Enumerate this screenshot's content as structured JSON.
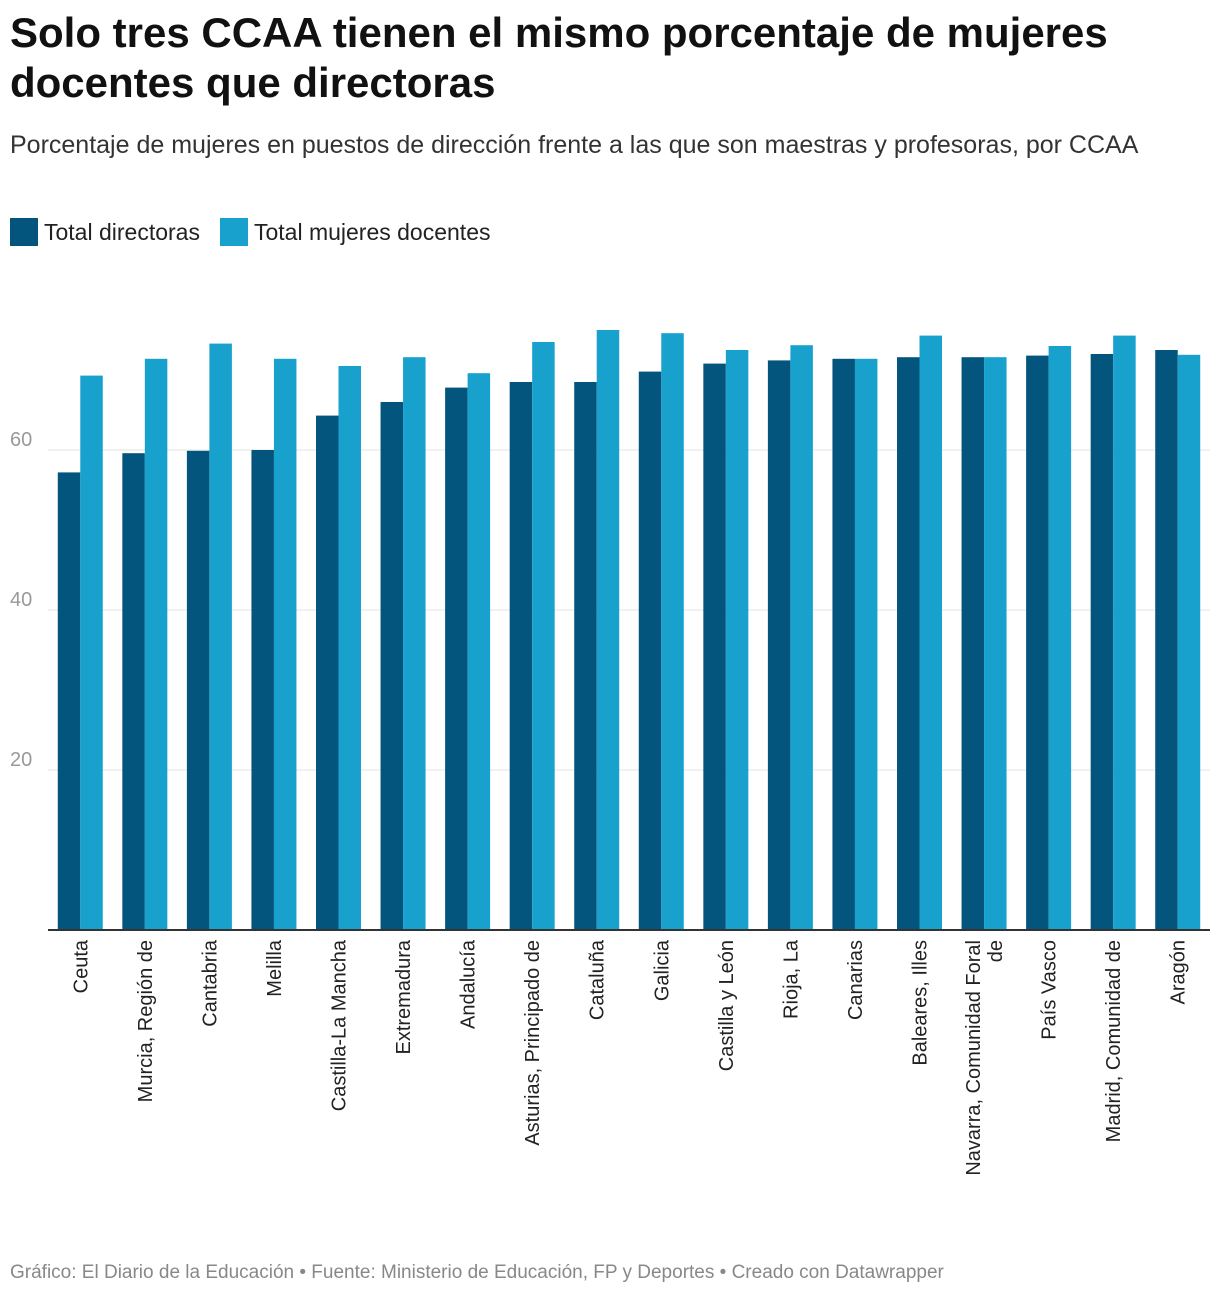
{
  "title": "Solo tres CCAA tienen el mismo porcentaje de mujeres docentes que directoras",
  "subtitle": "Porcentaje de mujeres en puestos de dirección frente a las que son maestras y profesoras, por CCAA",
  "footer": "Gráfico: El Diario de la Educación • Fuente: Ministerio de Educación, FP y Deportes • Creado con Datawrapper",
  "chart_data": {
    "type": "bar",
    "title": "Solo tres CCAA tienen el mismo porcentaje de mujeres docentes que directoras",
    "xlabel": "",
    "ylabel": "",
    "ylim": [
      0,
      76
    ],
    "yticks": [
      20,
      40,
      60
    ],
    "grid": true,
    "legend_position": "top-left",
    "categories": [
      [
        "Ceuta"
      ],
      [
        "Murcia, Región de"
      ],
      [
        "Cantabria"
      ],
      [
        "Melilla"
      ],
      [
        "Castilla-La Mancha"
      ],
      [
        "Extremadura"
      ],
      [
        "Andalucía"
      ],
      [
        "Asturias, Principado de"
      ],
      [
        "Cataluña"
      ],
      [
        "Galicia"
      ],
      [
        "Castilla y León"
      ],
      [
        "Rioja, La"
      ],
      [
        "Canarias"
      ],
      [
        "Baleares, Illes"
      ],
      [
        "Navarra, Comunidad Foral",
        "de"
      ],
      [
        "País Vasco"
      ],
      [
        "Madrid, Comunidad de"
      ],
      [
        "Aragón"
      ]
    ],
    "series": [
      {
        "name": "Total directoras",
        "color": "#04557d",
        "values": [
          57.2,
          59.6,
          59.9,
          60.0,
          64.3,
          66.0,
          67.8,
          68.5,
          68.5,
          69.8,
          70.8,
          71.2,
          71.4,
          71.6,
          71.6,
          71.8,
          72.0,
          72.5
        ]
      },
      {
        "name": "Total mujeres docentes",
        "color": "#18a1cd",
        "values": [
          69.3,
          71.4,
          73.3,
          71.4,
          70.5,
          71.6,
          69.6,
          73.5,
          75.0,
          74.6,
          72.5,
          73.1,
          71.4,
          74.3,
          71.6,
          73.0,
          74.3,
          71.9
        ]
      }
    ]
  }
}
